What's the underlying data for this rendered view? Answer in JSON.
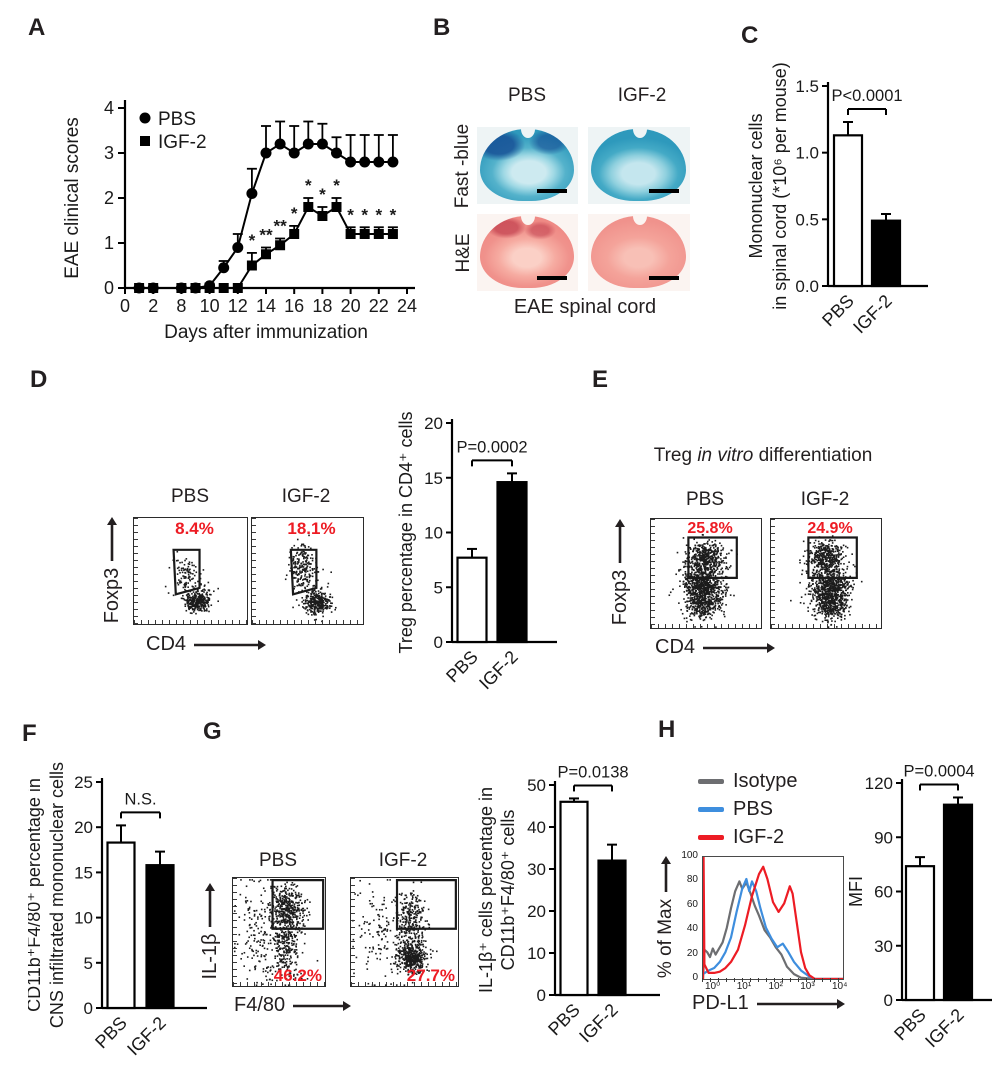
{
  "colors": {
    "red": "#ed1c24",
    "blue": "#3e8ede",
    "gray": "#6d6e71",
    "black": "#1a1a1a"
  },
  "panels": {
    "A": {
      "label": "A",
      "chart_data": {
        "type": "line",
        "xlabel": "Days after immunization",
        "ylabel": "EAE clinical scores",
        "xticks": [
          "0",
          "2",
          "8",
          "10",
          "12",
          "14",
          "16",
          "18",
          "20",
          "22",
          "24"
        ],
        "yticks": [
          "0",
          "1",
          "2",
          "3",
          "4"
        ],
        "ylim": [
          0,
          4
        ],
        "series": [
          {
            "name": "PBS",
            "marker": "circle",
            "x": [
              1,
              2,
              8,
              9,
              10,
              11,
              12,
              13,
              14,
              15,
              16,
              17,
              18,
              19,
              20,
              21,
              22,
              23
            ],
            "y": [
              0,
              0,
              0,
              0,
              0.05,
              0.45,
              0.9,
              2.1,
              3.0,
              3.2,
              3.0,
              3.2,
              3.2,
              3.0,
              2.8,
              2.8,
              2.8,
              2.8
            ],
            "err": [
              0,
              0,
              0,
              0,
              0.05,
              0.15,
              0.3,
              0.55,
              0.6,
              0.5,
              0.6,
              0.5,
              0.45,
              0.35,
              0.6,
              0.6,
              0.6,
              0.6
            ]
          },
          {
            "name": "IGF-2",
            "marker": "square",
            "x": [
              1,
              2,
              8,
              9,
              10,
              11,
              12,
              13,
              14,
              15,
              16,
              17,
              18,
              19,
              20,
              21,
              22,
              23
            ],
            "y": [
              0,
              0,
              0,
              0,
              0,
              0,
              0,
              0.5,
              0.75,
              0.95,
              1.2,
              1.8,
              1.6,
              1.8,
              1.2,
              1.2,
              1.2,
              1.2
            ],
            "err": [
              0,
              0,
              0,
              0,
              0,
              0,
              0,
              0.28,
              0.15,
              0.15,
              0.18,
              0.2,
              0.2,
              0.2,
              0.15,
              0.15,
              0.15,
              0.15
            ]
          }
        ],
        "significance": [
          {
            "day": 13,
            "mark": "*"
          },
          {
            "day": 14,
            "mark": "**"
          },
          {
            "day": 15,
            "mark": "**"
          },
          {
            "day": 16,
            "mark": "*"
          },
          {
            "day": 17,
            "mark": "*"
          },
          {
            "day": 18,
            "mark": "*"
          },
          {
            "day": 19,
            "mark": "*"
          },
          {
            "day": 20,
            "mark": "*"
          },
          {
            "day": 21,
            "mark": "*"
          },
          {
            "day": 22,
            "mark": "*"
          },
          {
            "day": 23,
            "mark": "*"
          }
        ]
      }
    },
    "B": {
      "label": "B",
      "columns": [
        "PBS",
        "IGF-2"
      ],
      "rows": [
        "Fast -blue",
        "H&E"
      ],
      "caption": "EAE spinal cord"
    },
    "C": {
      "label": "C",
      "chart_data": {
        "type": "bar",
        "categories": [
          "PBS",
          "IGF-2"
        ],
        "values": [
          1.13,
          0.49
        ],
        "errors": [
          0.1,
          0.05
        ],
        "fills": [
          "#ffffff",
          "#000000"
        ],
        "ymax": 1.5,
        "yticks": [
          "0.0",
          "0.5",
          "1.0",
          "1.5"
        ],
        "ylabel_lines": [
          "Mononuclear cells",
          "in spinal cord (*10⁶ per mouse)"
        ],
        "p_label": "P<0.0001"
      }
    },
    "D": {
      "label": "D",
      "flow": {
        "titles": [
          "PBS",
          "IGF-2"
        ],
        "percentages": [
          "8.4%",
          "18.1%"
        ],
        "x_axis": "CD4",
        "y_axis": "Foxp3",
        "gate": [
          [
            0.35,
            0.3
          ],
          [
            0.58,
            0.3
          ],
          [
            0.58,
            0.66
          ],
          [
            0.37,
            0.72
          ]
        ],
        "plots": [
          {
            "clusters": [
              [
                0.56,
                0.78,
                0.055,
                0.05,
                280
              ],
              [
                0.46,
                0.52,
                0.05,
                0.09,
                85
              ],
              [
                0.55,
                0.72,
                0.12,
                0.1,
                40
              ]
            ]
          },
          {
            "clusters": [
              [
                0.58,
                0.8,
                0.06,
                0.05,
                300
              ],
              [
                0.45,
                0.45,
                0.055,
                0.1,
                190
              ],
              [
                0.52,
                0.68,
                0.12,
                0.1,
                40
              ]
            ]
          }
        ]
      },
      "chart_data": {
        "type": "bar",
        "categories": [
          "PBS",
          "IGF-2"
        ],
        "values": [
          7.7,
          14.6
        ],
        "errors": [
          0.8,
          0.8
        ],
        "fills": [
          "#ffffff",
          "#000000"
        ],
        "ymax": 20,
        "yticks": [
          "0",
          "5",
          "10",
          "15",
          "20"
        ],
        "ylabel_lines": [
          "Treg percentage in CD4⁺ cells"
        ],
        "p_label": "P=0.0002"
      }
    },
    "E": {
      "label": "E",
      "title_pre": "Treg ",
      "title_italic": "in vitro",
      "title_post": " differentiation",
      "flow": {
        "titles": [
          "PBS",
          "IGF-2"
        ],
        "percentages": [
          "25.8%",
          "24.9%"
        ],
        "x_axis": "CD4",
        "y_axis": "Foxp3",
        "gate": [
          [
            0.34,
            0.17
          ],
          [
            0.78,
            0.17
          ],
          [
            0.78,
            0.54
          ],
          [
            0.34,
            0.54
          ]
        ],
        "plots": [
          {
            "clusters": [
              [
                0.47,
                0.62,
                0.09,
                0.12,
                900
              ],
              [
                0.5,
                0.34,
                0.085,
                0.07,
                380
              ],
              [
                0.46,
                0.8,
                0.08,
                0.05,
                120
              ]
            ]
          },
          {
            "clusters": [
              [
                0.53,
                0.64,
                0.09,
                0.12,
                850
              ],
              [
                0.49,
                0.33,
                0.085,
                0.07,
                360
              ],
              [
                0.55,
                0.82,
                0.08,
                0.05,
                120
              ]
            ]
          }
        ]
      }
    },
    "F": {
      "label": "F",
      "chart_data": {
        "type": "bar",
        "categories": [
          "PBS",
          "IGF-2"
        ],
        "values": [
          18.3,
          15.8
        ],
        "errors": [
          1.9,
          1.5
        ],
        "fills": [
          "#ffffff",
          "#000000"
        ],
        "ymax": 25,
        "yticks": [
          "0",
          "5",
          "10",
          "15",
          "20",
          "25"
        ],
        "ylabel_lines": [
          "CD11b⁺F4/80⁺ percentage in",
          "CNS infiltrated mononuclear cells"
        ],
        "p_label": "N.S."
      }
    },
    "G": {
      "label": "G",
      "flow": {
        "titles": [
          "PBS",
          "IGF-2"
        ],
        "percentages": [
          "46.2%",
          "27.7%"
        ],
        "x_axis": "F4/80",
        "y_axis": "IL-1β",
        "gate": [
          [
            0.43,
            0.02
          ],
          [
            0.98,
            0.02
          ],
          [
            0.98,
            0.47
          ],
          [
            0.43,
            0.47
          ]
        ],
        "plots": [
          {
            "clusters": [
              [
                0.58,
                0.27,
                0.1,
                0.12,
                420
              ],
              [
                0.55,
                0.6,
                0.08,
                0.13,
                260
              ],
              [
                0.24,
                0.42,
                0.11,
                0.22,
                130
              ],
              [
                0.5,
                0.85,
                0.15,
                0.07,
                50
              ]
            ]
          },
          {
            "clusters": [
              [
                0.57,
                0.73,
                0.07,
                0.07,
                430
              ],
              [
                0.55,
                0.38,
                0.08,
                0.14,
                300
              ],
              [
                0.24,
                0.5,
                0.11,
                0.22,
                110
              ]
            ]
          }
        ]
      },
      "chart_data": {
        "type": "bar",
        "categories": [
          "PBS",
          "IGF-2"
        ],
        "values": [
          46,
          32
        ],
        "errors": [
          0.8,
          3.8
        ],
        "fills": [
          "#ffffff",
          "#000000"
        ],
        "ymax": 50,
        "yticks": [
          "0",
          "10",
          "20",
          "30",
          "40",
          "50"
        ],
        "ylabel_lines": [
          "IL-1β⁺ cells percentage in",
          "CD11b⁺F4/80⁺ cells"
        ],
        "p_label": "P=0.0138"
      }
    },
    "H": {
      "label": "H",
      "legend": [
        {
          "label": "Isotype",
          "color": "#6d6e71"
        },
        {
          "label": "PBS",
          "color": "#3e8ede"
        },
        {
          "label": "IGF-2",
          "color": "#ed1c24"
        }
      ],
      "chart_data": [
        {
          "type": "histogram",
          "xlabel": "PD-L1",
          "ylabel": "% of Max",
          "yticks": [
            "100",
            "80",
            "60",
            "40",
            "20",
            "0"
          ],
          "xticks": [
            "10⁰",
            "10¹",
            "10²",
            "10³",
            "10⁴"
          ],
          "series": [
            {
              "name": "Isotype",
              "color": "#6d6e71",
              "points": [
                [
                  0,
                  0
                ],
                [
                  0.01,
                  24
                ],
                [
                  0.03,
                  22
                ],
                [
                  0.05,
                  18
                ],
                [
                  0.07,
                  25
                ],
                [
                  0.09,
                  20
                ],
                [
                  0.11,
                  24
                ],
                [
                  0.14,
                  30
                ],
                [
                  0.17,
                  42
                ],
                [
                  0.2,
                  58
                ],
                [
                  0.23,
                  72
                ],
                [
                  0.26,
                  80
                ],
                [
                  0.28,
                  74
                ],
                [
                  0.31,
                  79
                ],
                [
                  0.34,
                  70
                ],
                [
                  0.37,
                  60
                ],
                [
                  0.4,
                  52
                ],
                [
                  0.44,
                  40
                ],
                [
                  0.48,
                  34
                ],
                [
                  0.52,
                  26
                ],
                [
                  0.56,
                  20
                ],
                [
                  0.6,
                  10
                ],
                [
                  0.65,
                  4
                ],
                [
                  0.7,
                  1
                ],
                [
                  0.8,
                  0
                ],
                [
                  1,
                  0
                ]
              ]
            },
            {
              "name": "PBS",
              "color": "#3e8ede",
              "points": [
                [
                  0,
                  4
                ],
                [
                  0.04,
                  7
                ],
                [
                  0.08,
                  9
                ],
                [
                  0.12,
                  14
                ],
                [
                  0.16,
                  22
                ],
                [
                  0.2,
                  34
                ],
                [
                  0.24,
                  55
                ],
                [
                  0.28,
                  74
                ],
                [
                  0.31,
                  82
                ],
                [
                  0.33,
                  72
                ],
                [
                  0.35,
                  80
                ],
                [
                  0.38,
                  72
                ],
                [
                  0.41,
                  58
                ],
                [
                  0.45,
                  42
                ],
                [
                  0.49,
                  33
                ],
                [
                  0.53,
                  26
                ],
                [
                  0.57,
                  29
                ],
                [
                  0.61,
                  22
                ],
                [
                  0.65,
                  14
                ],
                [
                  0.7,
                  7
                ],
                [
                  0.76,
                  2
                ],
                [
                  0.8,
                  0
                ],
                [
                  1,
                  0
                ]
              ]
            },
            {
              "name": "IGF-2",
              "color": "#ed1c24",
              "points": [
                [
                  0,
                  0
                ],
                [
                  0.004,
                  100
                ],
                [
                  0.01,
                  12
                ],
                [
                  0.04,
                  5
                ],
                [
                  0.08,
                  5
                ],
                [
                  0.12,
                  6
                ],
                [
                  0.16,
                  9
                ],
                [
                  0.2,
                  14
                ],
                [
                  0.25,
                  24
                ],
                [
                  0.3,
                  44
                ],
                [
                  0.35,
                  68
                ],
                [
                  0.4,
                  86
                ],
                [
                  0.43,
                  92
                ],
                [
                  0.46,
                  82
                ],
                [
                  0.5,
                  63
                ],
                [
                  0.54,
                  55
                ],
                [
                  0.58,
                  62
                ],
                [
                  0.62,
                  76
                ],
                [
                  0.64,
                  70
                ],
                [
                  0.67,
                  46
                ],
                [
                  0.7,
                  22
                ],
                [
                  0.73,
                  9
                ],
                [
                  0.76,
                  3
                ],
                [
                  0.8,
                  0
                ],
                [
                  1,
                  0
                ]
              ]
            }
          ]
        },
        {
          "type": "bar",
          "categories": [
            "PBS",
            "IGF-2"
          ],
          "values": [
            74,
            108
          ],
          "errors": [
            5,
            4
          ],
          "fills": [
            "#ffffff",
            "#000000"
          ],
          "ymax": 120,
          "yticks": [
            "0",
            "30",
            "60",
            "90",
            "120"
          ],
          "ylabel_lines": [
            "MFI"
          ],
          "p_label": "P=0.0004"
        }
      ]
    }
  }
}
